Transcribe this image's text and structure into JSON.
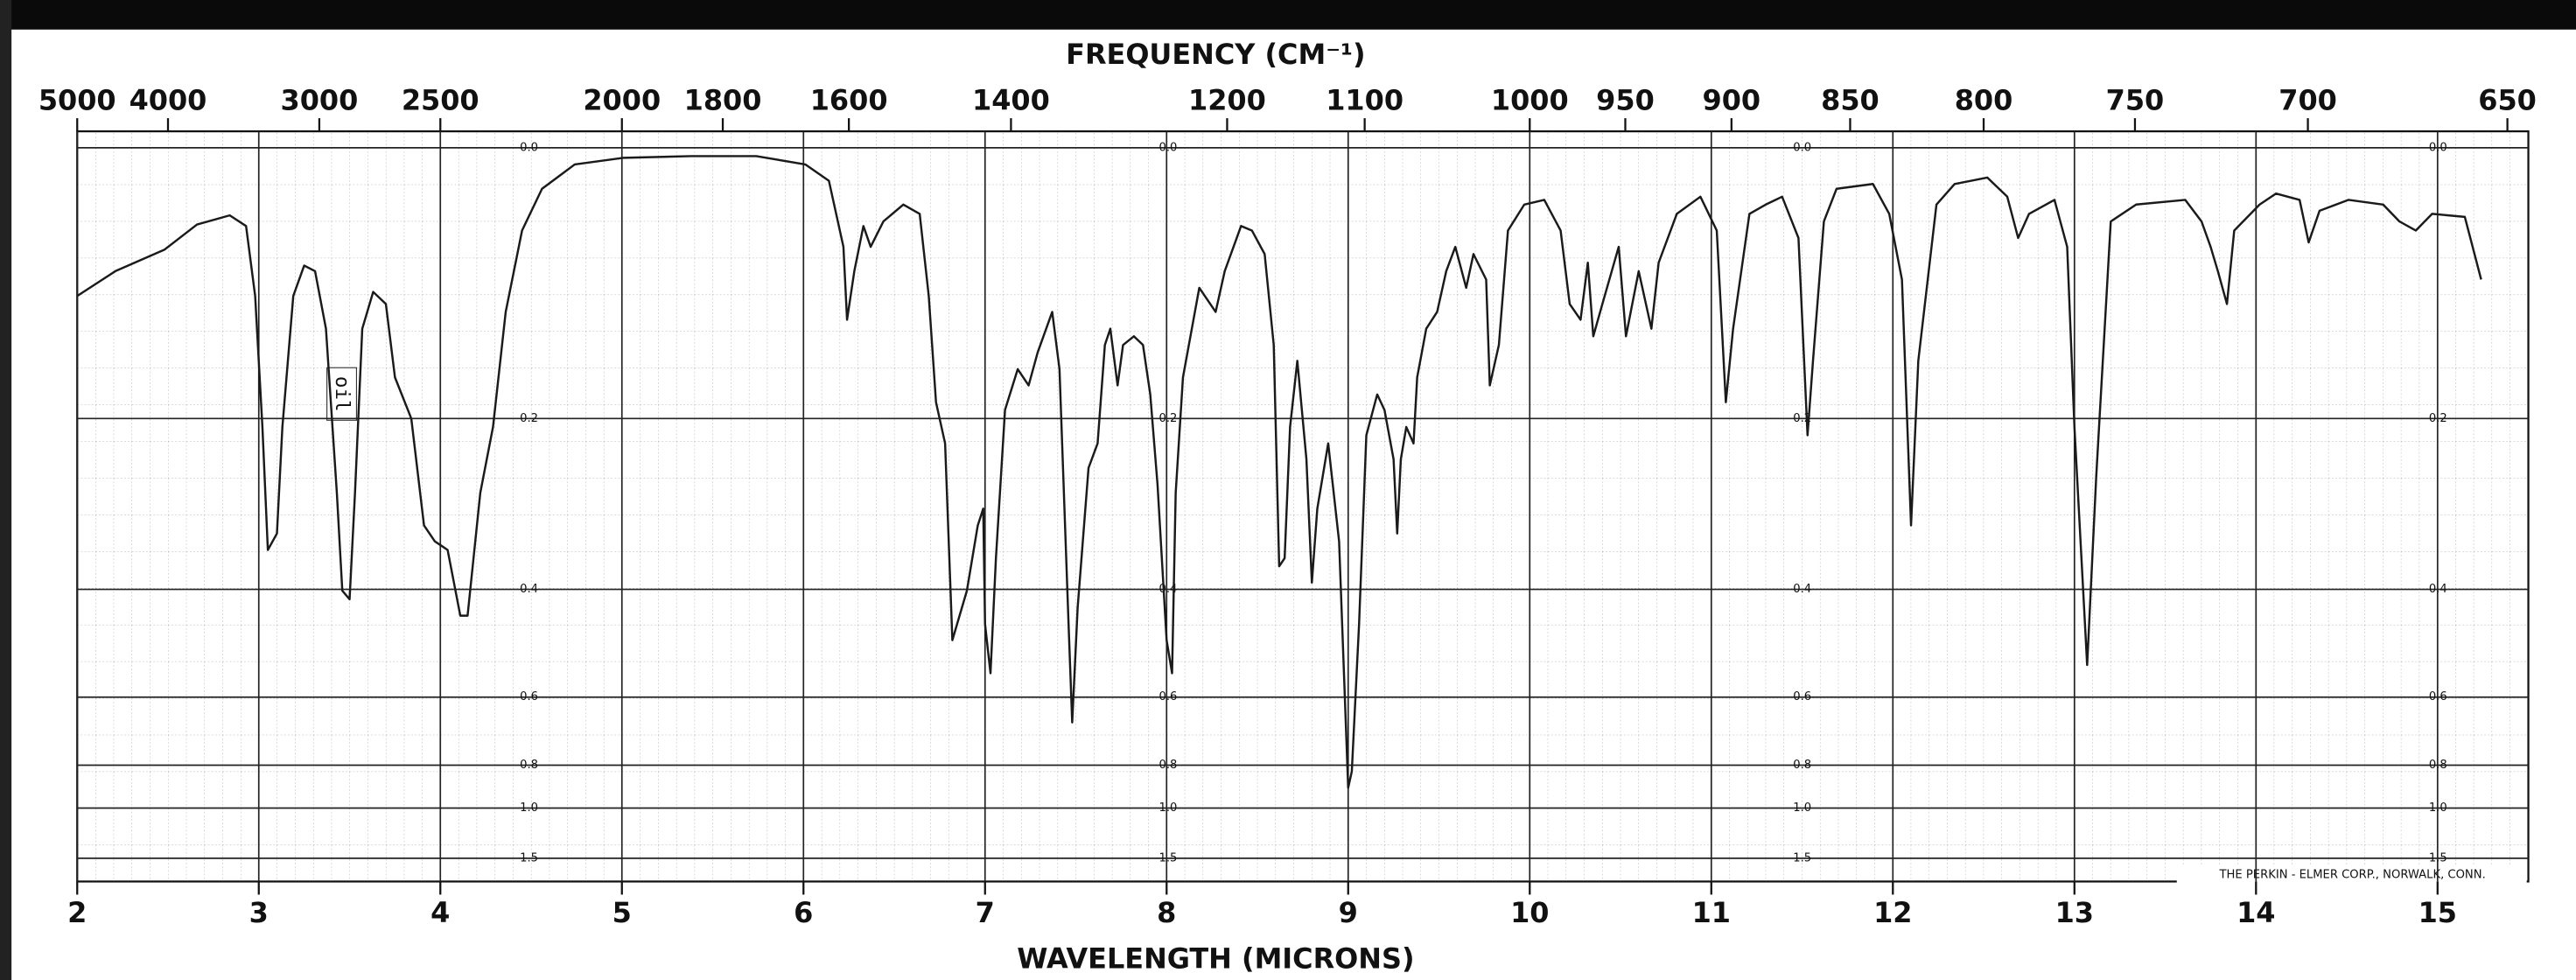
{
  "chart_data": {
    "type": "line",
    "title": "FREQUENCY (CM⁻¹)",
    "xlabel": "WAVELENGTH (MICRONS)",
    "annotation": "oil",
    "credit": "THE PERKIN - ELMER CORP., NORWALK, CONN.",
    "color": "#1a1a1a",
    "y_scale": "absorbance",
    "x2_scale": "reciprocal",
    "grid": true,
    "xlim": [
      2,
      15.5
    ],
    "xticks": [
      2,
      3,
      4,
      5,
      6,
      7,
      8,
      9,
      10,
      11,
      12,
      13,
      14,
      15
    ],
    "x2lim": [
      5000,
      645.16
    ],
    "x2ticks": [
      5000,
      4000,
      3000,
      2500,
      2000,
      1800,
      1600,
      1400,
      1200,
      1100,
      1000,
      950,
      900,
      850,
      800,
      750,
      700,
      650
    ],
    "ylim": [
      0,
      2
    ],
    "yticks": [
      {
        "value": 0,
        "label": "0.0"
      },
      0.2,
      0.4,
      0.6,
      0.8,
      {
        "value": 1,
        "label": "1.0"
      },
      1.5
    ],
    "x": [
      2.0,
      2.21,
      2.48,
      2.66,
      2.84,
      2.93,
      2.98,
      3.02,
      3.05,
      3.1,
      3.13,
      3.19,
      3.25,
      3.31,
      3.37,
      3.43,
      3.46,
      3.5,
      3.53,
      3.57,
      3.63,
      3.7,
      3.75,
      3.84,
      3.91,
      3.97,
      4.04,
      4.11,
      4.15,
      4.22,
      4.29,
      4.36,
      4.45,
      4.56,
      4.74,
      5.01,
      5.38,
      5.74,
      6.01,
      6.14,
      6.22,
      6.24,
      6.28,
      6.33,
      6.37,
      6.44,
      6.55,
      6.64,
      6.69,
      6.73,
      6.78,
      6.82,
      6.9,
      6.96,
      6.99,
      7.0,
      7.03,
      7.06,
      7.11,
      7.18,
      7.24,
      7.29,
      7.37,
      7.41,
      7.46,
      7.48,
      7.51,
      7.57,
      7.62,
      7.66,
      7.69,
      7.73,
      7.76,
      7.82,
      7.87,
      7.91,
      7.95,
      8.0,
      8.03,
      8.05,
      8.09,
      8.18,
      8.27,
      8.32,
      8.41,
      8.47,
      8.54,
      8.59,
      8.62,
      8.65,
      8.68,
      8.72,
      8.77,
      8.8,
      8.83,
      8.89,
      8.95,
      9.0,
      9.02,
      9.06,
      9.1,
      9.16,
      9.2,
      9.25,
      9.27,
      9.29,
      9.32,
      9.36,
      9.38,
      9.43,
      9.49,
      9.54,
      9.59,
      9.65,
      9.69,
      9.76,
      9.78,
      9.83,
      9.88,
      9.97,
      10.08,
      10.17,
      10.22,
      10.28,
      10.32,
      10.35,
      10.4,
      10.49,
      10.53,
      10.6,
      10.67,
      10.71,
      10.81,
      10.94,
      11.03,
      11.08,
      11.12,
      11.21,
      11.3,
      11.39,
      11.48,
      11.53,
      11.56,
      11.62,
      11.69,
      11.89,
      11.98,
      12.05,
      12.1,
      12.14,
      12.24,
      12.34,
      12.52,
      12.63,
      12.69,
      12.75,
      12.89,
      12.96,
      13.0,
      13.07,
      13.12,
      13.2,
      13.34,
      13.61,
      13.7,
      13.75,
      13.79,
      13.84,
      13.88,
      14.02,
      14.11,
      14.24,
      14.29,
      14.35,
      14.51,
      14.7,
      14.79,
      14.88,
      14.97,
      15.15,
      15.24
    ],
    "values": [
      0.098,
      0.08,
      0.065,
      0.048,
      0.042,
      0.049,
      0.098,
      0.208,
      0.345,
      0.324,
      0.208,
      0.098,
      0.076,
      0.08,
      0.123,
      0.276,
      0.402,
      0.415,
      0.276,
      0.123,
      0.095,
      0.104,
      0.163,
      0.2,
      0.314,
      0.334,
      0.345,
      0.441,
      0.441,
      0.276,
      0.208,
      0.11,
      0.052,
      0.025,
      0.01,
      0.006,
      0.005,
      0.005,
      0.01,
      0.02,
      0.063,
      0.116,
      0.08,
      0.049,
      0.063,
      0.046,
      0.035,
      0.041,
      0.098,
      0.185,
      0.224,
      0.483,
      0.402,
      0.314,
      0.294,
      0.455,
      0.547,
      0.356,
      0.192,
      0.156,
      0.17,
      0.142,
      0.11,
      0.156,
      0.455,
      0.664,
      0.428,
      0.249,
      0.224,
      0.136,
      0.123,
      0.17,
      0.136,
      0.129,
      0.136,
      0.178,
      0.267,
      0.483,
      0.547,
      0.276,
      0.163,
      0.092,
      0.11,
      0.08,
      0.049,
      0.052,
      0.068,
      0.136,
      0.367,
      0.356,
      0.208,
      0.149,
      0.24,
      0.39,
      0.294,
      0.224,
      0.334,
      0.894,
      0.824,
      0.455,
      0.216,
      0.178,
      0.192,
      0.24,
      0.324,
      0.24,
      0.208,
      0.224,
      0.163,
      0.123,
      0.11,
      0.08,
      0.063,
      0.092,
      0.068,
      0.086,
      0.17,
      0.136,
      0.052,
      0.035,
      0.032,
      0.052,
      0.104,
      0.116,
      0.074,
      0.129,
      0.104,
      0.063,
      0.129,
      0.08,
      0.123,
      0.074,
      0.041,
      0.03,
      0.052,
      0.185,
      0.123,
      0.041,
      0.035,
      0.03,
      0.057,
      0.216,
      0.149,
      0.046,
      0.025,
      0.022,
      0.041,
      0.086,
      0.314,
      0.149,
      0.035,
      0.022,
      0.018,
      0.03,
      0.057,
      0.041,
      0.032,
      0.063,
      0.208,
      0.53,
      0.258,
      0.046,
      0.035,
      0.032,
      0.046,
      0.063,
      0.08,
      0.104,
      0.052,
      0.035,
      0.028,
      0.032,
      0.06,
      0.039,
      0.032,
      0.035,
      0.046,
      0.052,
      0.041,
      0.043,
      0.086
    ]
  }
}
